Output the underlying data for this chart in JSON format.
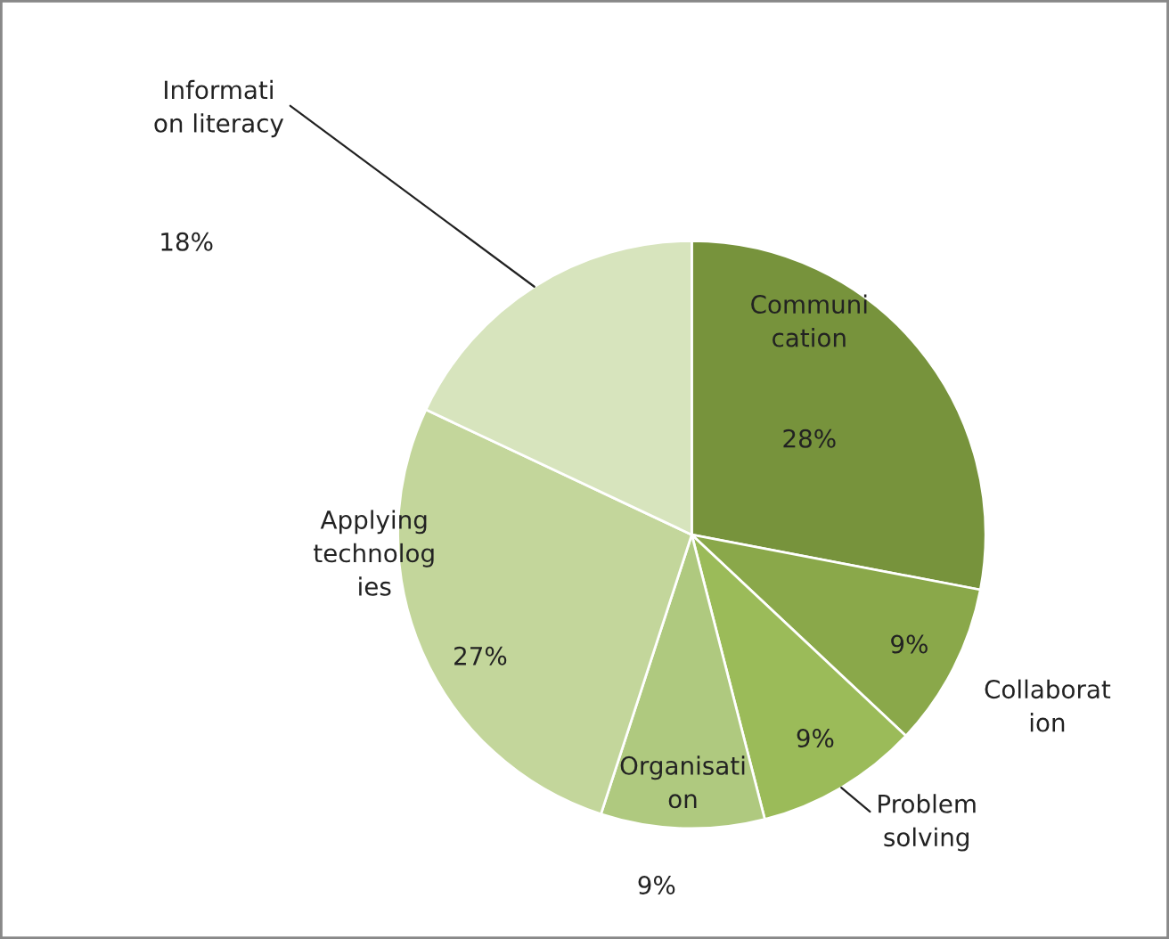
{
  "chart_data": {
    "type": "pie",
    "categories": [
      "Communi\ncation",
      "Collaborat\nion",
      "Problem\nsolving",
      "Organisati\non",
      "Applying\ntechnolog\nies",
      "Informati\non literacy"
    ],
    "values": [
      28,
      9,
      9,
      9,
      27,
      18
    ],
    "colors": [
      "#77933c",
      "#8aa84a",
      "#9bbb59",
      "#afc97f",
      "#c3d69b",
      "#d7e4bd"
    ],
    "value_labels": [
      "28%",
      "9%",
      "9%",
      "9%",
      "27%",
      "18%"
    ]
  }
}
